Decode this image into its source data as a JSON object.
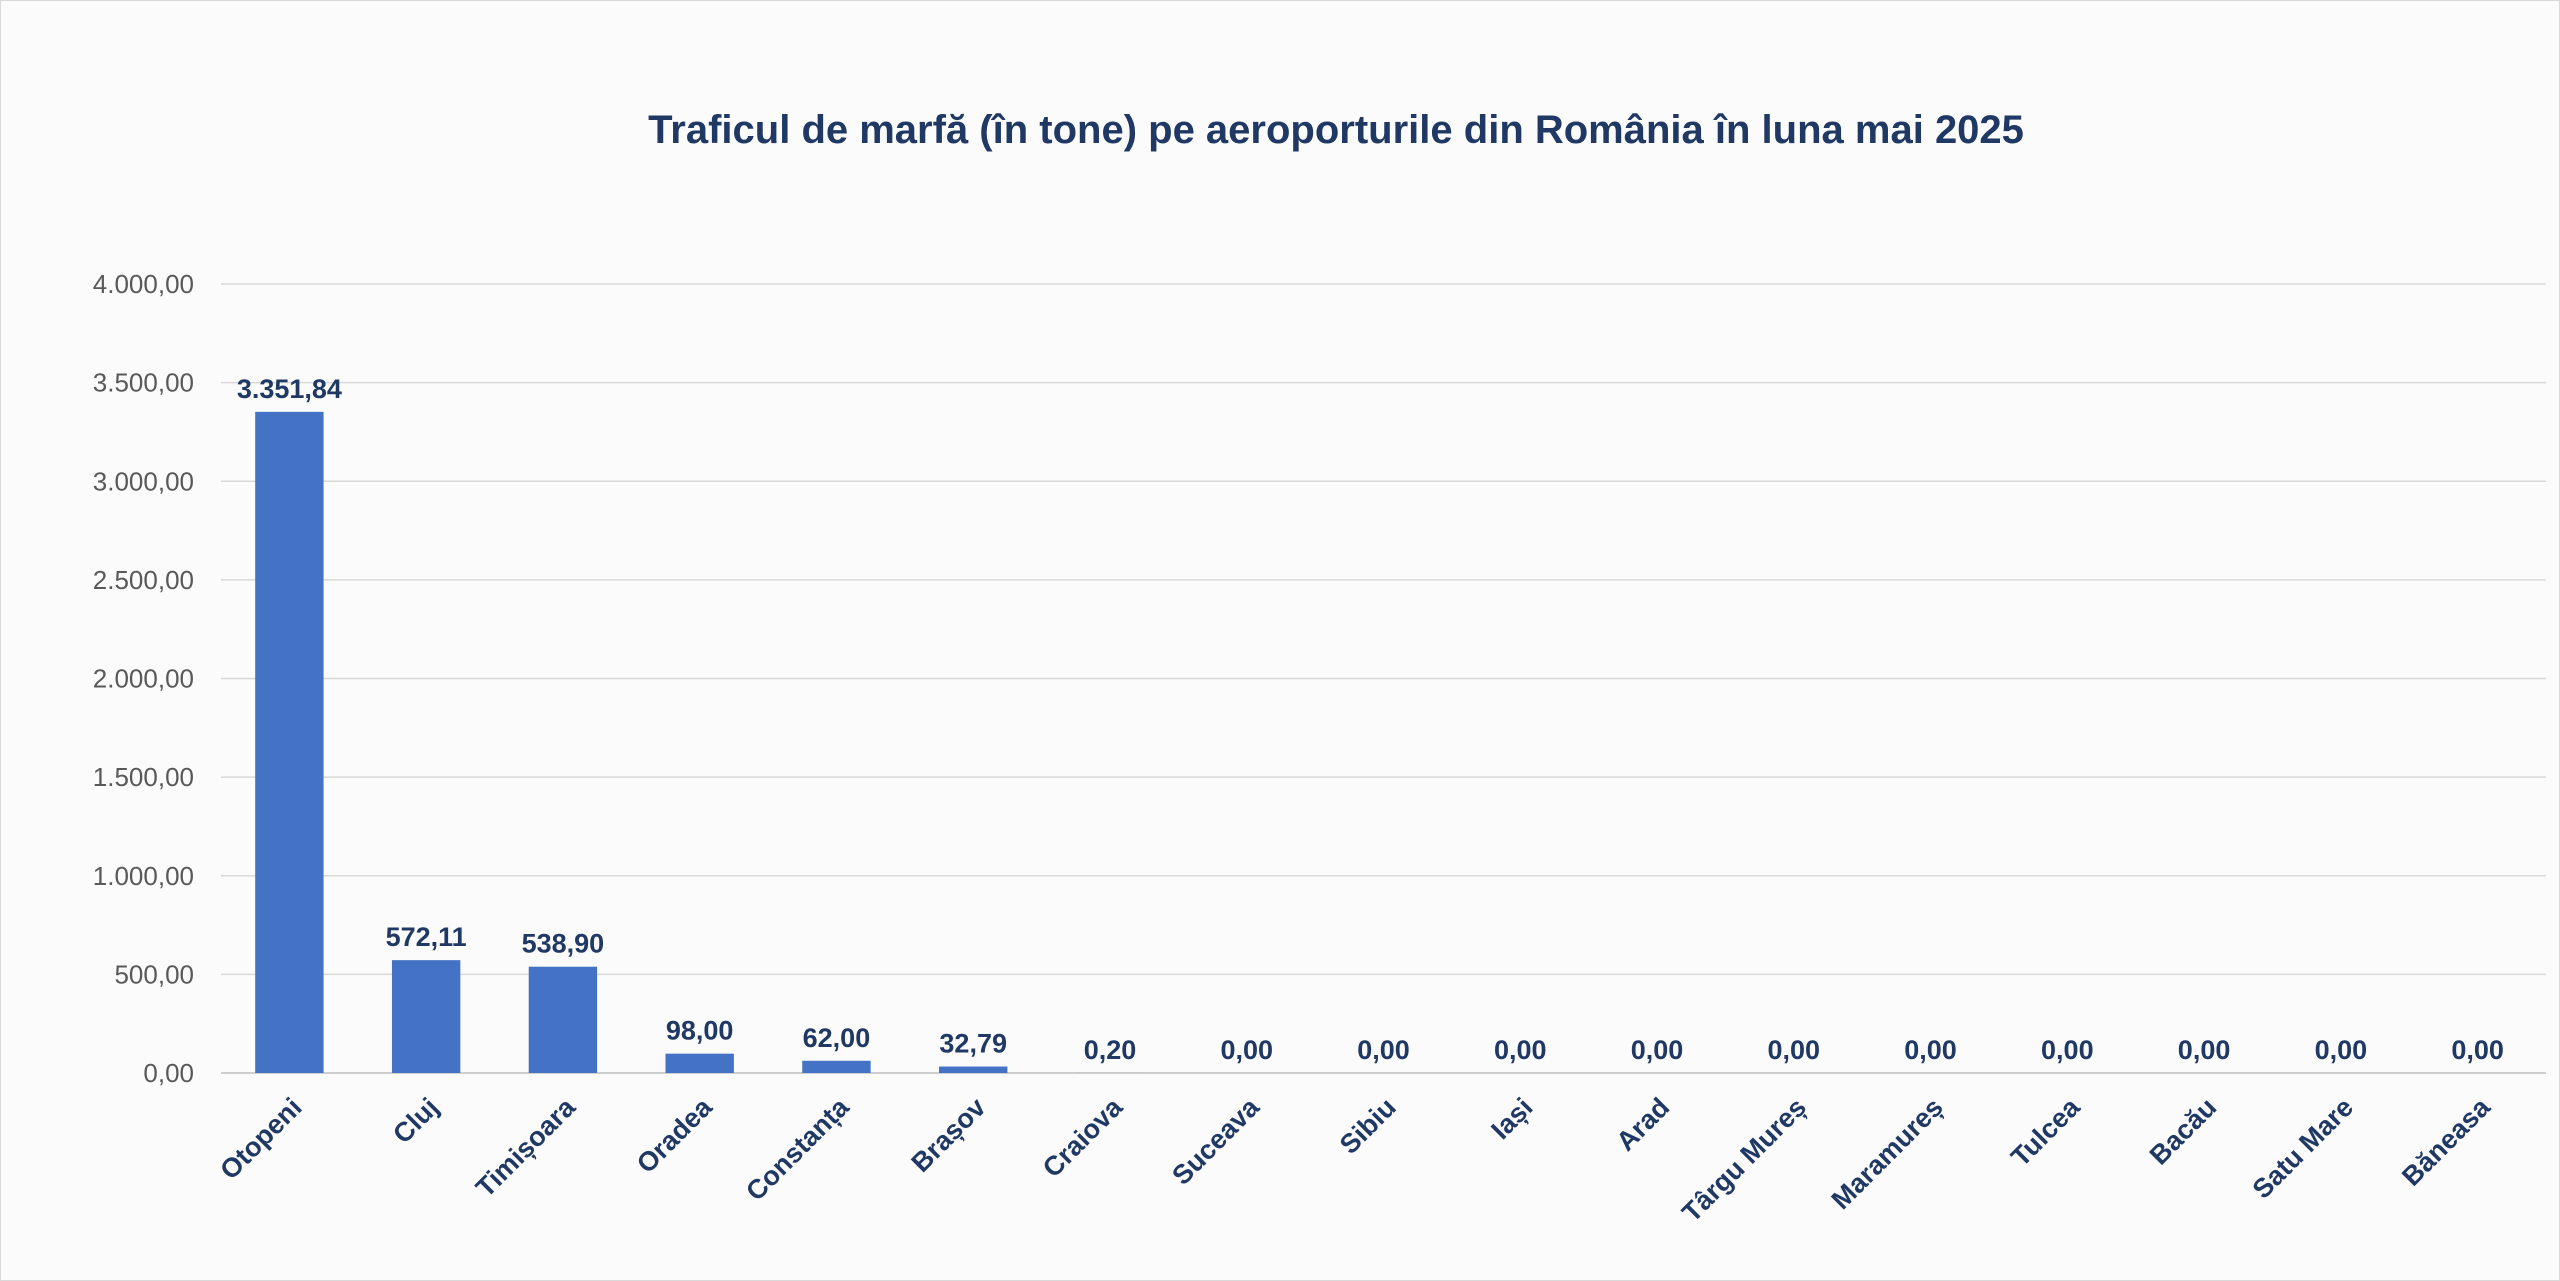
{
  "chart_data": {
    "type": "bar",
    "title": "Traficul de marfă (în tone) pe aeroporturile din România în luna mai 2025",
    "xlabel": "",
    "ylabel": "",
    "categories": [
      "Otopeni",
      "Cluj",
      "Timișoara",
      "Oradea",
      "Constanța",
      "Brașov",
      "Craiova",
      "Suceava",
      "Sibiu",
      "Iași",
      "Arad",
      "Târgu Mureș",
      "Maramureș",
      "Tulcea",
      "Bacău",
      "Satu Mare",
      "Băneasa"
    ],
    "values": [
      3351.84,
      572.11,
      538.9,
      98.0,
      62.0,
      32.79,
      0.2,
      0.0,
      0.0,
      0.0,
      0.0,
      0.0,
      0.0,
      0.0,
      0.0,
      0.0,
      0.0
    ],
    "data_labels": [
      "3.351,84",
      "572,11",
      "538,90",
      "98,00",
      "62,00",
      "32,79",
      "0,20",
      "0,00",
      "0,00",
      "0,00",
      "0,00",
      "0,00",
      "0,00",
      "0,00",
      "0,00",
      "0,00",
      "0,00"
    ],
    "ylim": [
      0,
      4000
    ],
    "yticks": [
      0,
      500,
      1000,
      1500,
      2000,
      2500,
      3000,
      3500,
      4000
    ],
    "ytick_labels": [
      "0,00",
      "500,00",
      "1.000,00",
      "1.500,00",
      "2.000,00",
      "2.500,00",
      "3.000,00",
      "3.500,00",
      "4.000,00"
    ],
    "grid": true,
    "legend": "none",
    "bar_color": "#4472c4",
    "title_color": "#1f3864",
    "label_color": "#1f3864",
    "tick_color": "#595959",
    "grid_color": "#d9d9d9",
    "background_color": "#fbfbfb"
  }
}
